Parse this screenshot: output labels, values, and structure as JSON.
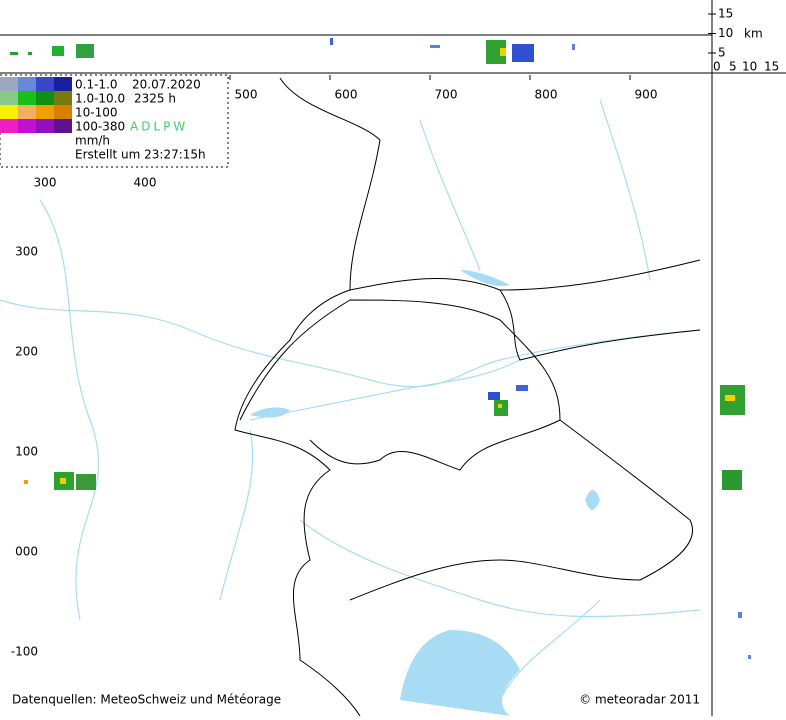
{
  "legend": {
    "rows": [
      "0.1-1.0",
      "1.0-10.0",
      "10-100",
      "100-380"
    ],
    "unit": "mm/h",
    "date": "20.07.2020",
    "time": "2325 h",
    "sources_code": "ADLPW",
    "created": "Erstellt um 23:27:15h"
  },
  "axes": {
    "top": [
      "500",
      "600",
      "700",
      "800",
      "900"
    ],
    "inner_top": [
      "300",
      "400"
    ],
    "left": [
      "300",
      "200",
      "100",
      "000",
      "-100"
    ]
  },
  "height_scale": {
    "vertical": [
      "15",
      "10",
      "5"
    ],
    "unit": "km",
    "horizontal": [
      "0",
      "5",
      "10",
      "15"
    ]
  },
  "footer": {
    "sources": "Datenquellen: MeteoSchweiz und Météorage",
    "copyright": "© meteoradar 2011"
  }
}
